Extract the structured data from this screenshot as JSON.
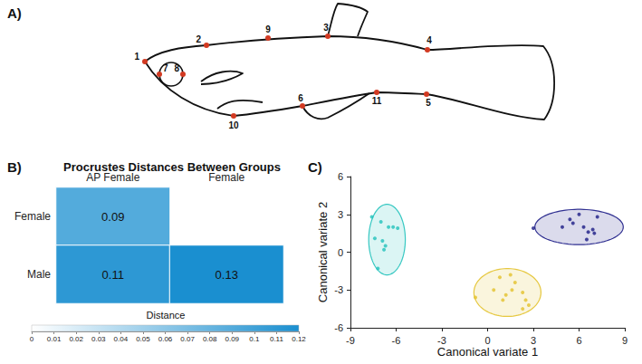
{
  "diagram": {
    "panel": "A)",
    "landmarks": [
      "1",
      "2",
      "3",
      "4",
      "5",
      "6",
      "7",
      "8",
      "9",
      "10",
      "11"
    ]
  },
  "chart_data": [
    {
      "panel": "B)",
      "type": "heatmap",
      "title": "Procrustes Distances Between Groups",
      "x_categories": [
        "AP Female",
        "Female"
      ],
      "y_categories": [
        "Female",
        "Male"
      ],
      "cells": [
        {
          "x": "AP Female",
          "y": "Female",
          "value": 0.09
        },
        {
          "x": "AP Female",
          "y": "Male",
          "value": 0.11
        },
        {
          "x": "Female",
          "y": "Male",
          "value": 0.13
        }
      ],
      "data_labels": true,
      "colorbar": {
        "title": "Distance",
        "range": [
          0,
          0.12
        ],
        "ticks": [
          0,
          0.01,
          0.02,
          0.03,
          0.04,
          0.05,
          0.06,
          0.07,
          0.08,
          0.09,
          0.1,
          0.11,
          0.12
        ],
        "colors": [
          "#ffffff",
          "#1a8fd0"
        ]
      }
    },
    {
      "panel": "C)",
      "type": "scatter",
      "x_label": "Canonical variate 1",
      "y_label": "Canonical variate 2",
      "xlim": [
        -9,
        9
      ],
      "xticks": [
        -9,
        -6,
        -3,
        0,
        3,
        6,
        9
      ],
      "ylim": [
        -6,
        6
      ],
      "yticks": [
        -6,
        -3,
        0,
        3,
        6
      ],
      "grid": false,
      "series": [
        {
          "color": "#22c2bb",
          "points": [
            [
              -7.6,
              2.8
            ],
            [
              -7.0,
              2.4
            ],
            [
              -6.5,
              2.0
            ],
            [
              -6.2,
              2.0
            ],
            [
              -5.9,
              1.9
            ],
            [
              -7.4,
              1.1
            ],
            [
              -6.9,
              0.9
            ],
            [
              -6.7,
              0.5
            ],
            [
              -6.8,
              0.2
            ],
            [
              -7.2,
              -1.3
            ]
          ],
          "ellipse": {
            "center": [
              -6.6,
              1.0
            ],
            "radii": [
              1.2,
              2.8
            ]
          }
        },
        {
          "color": "#e3c22c",
          "points": [
            [
              -0.8,
              -3.6
            ],
            [
              0.4,
              -3.0
            ],
            [
              0.8,
              -2.0
            ],
            [
              1.5,
              -1.8
            ],
            [
              1.8,
              -2.4
            ],
            [
              1.2,
              -3.4
            ],
            [
              1.6,
              -3.0
            ],
            [
              2.3,
              -3.2
            ],
            [
              2.5,
              -3.8
            ],
            [
              2.7,
              -4.2
            ],
            [
              2.3,
              -4.5
            ],
            [
              1.0,
              -3.8
            ]
          ],
          "ellipse": {
            "center": [
              1.3,
              -3.2
            ],
            "radii": [
              2.2,
              1.9
            ]
          }
        },
        {
          "color": "#1c1c86",
          "points": [
            [
              3.0,
              1.9
            ],
            [
              4.9,
              2.0
            ],
            [
              5.4,
              2.6
            ],
            [
              6.0,
              3.0
            ],
            [
              6.3,
              2.0
            ],
            [
              6.6,
              1.6
            ],
            [
              6.9,
              1.8
            ],
            [
              7.0,
              1.5
            ],
            [
              7.2,
              2.8
            ],
            [
              6.5,
              1.0
            ],
            [
              5.6,
              2.3
            ]
          ],
          "ellipse": {
            "center": [
              6.0,
              2.0
            ],
            "radii": [
              2.9,
              1.4
            ]
          }
        }
      ]
    }
  ]
}
